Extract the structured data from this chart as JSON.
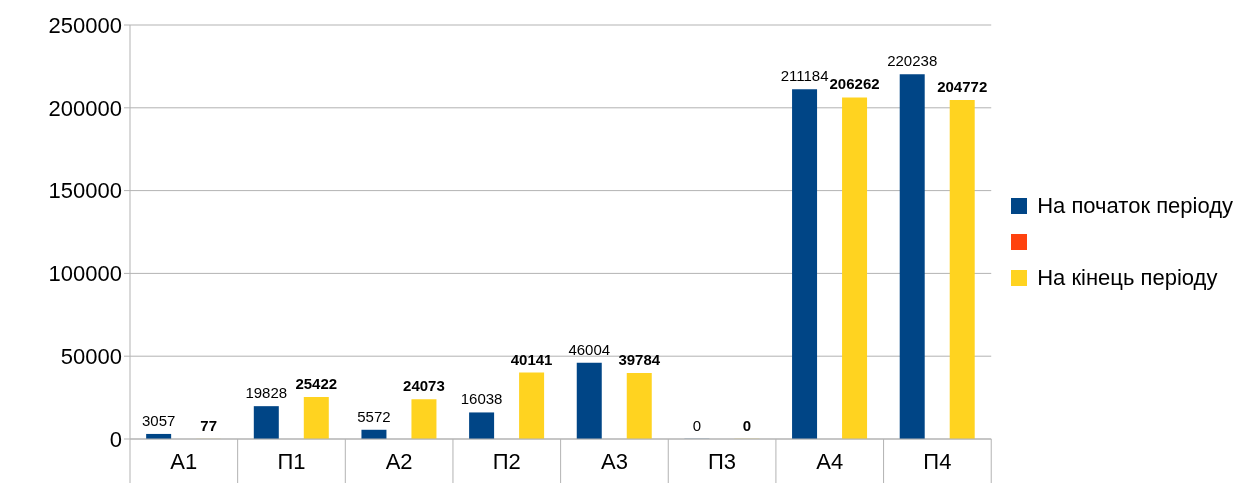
{
  "chart_data": {
    "type": "bar",
    "categories": [
      "А1",
      "П1",
      "А2",
      "П2",
      "А3",
      "П3",
      "А4",
      "П4"
    ],
    "series": [
      {
        "name": "На початок періоду",
        "color": "#004586",
        "values": [
          3057,
          19828,
          5572,
          16038,
          46004,
          0,
          211184,
          220238
        ]
      },
      {
        "color": "#ff420e",
        "values": [
          null,
          null,
          null,
          null,
          null,
          null,
          null,
          null
        ]
      },
      {
        "name": "На кінець періоду",
        "color": "#ffd320",
        "values": [
          77,
          25422,
          24073,
          40141,
          39784,
          0,
          206262,
          204772
        ]
      }
    ],
    "ylim": [
      0,
      250000
    ],
    "yticks": [
      0,
      50000,
      100000,
      150000,
      200000,
      250000
    ],
    "grid": "y",
    "legend": "right",
    "data_labels": true
  }
}
